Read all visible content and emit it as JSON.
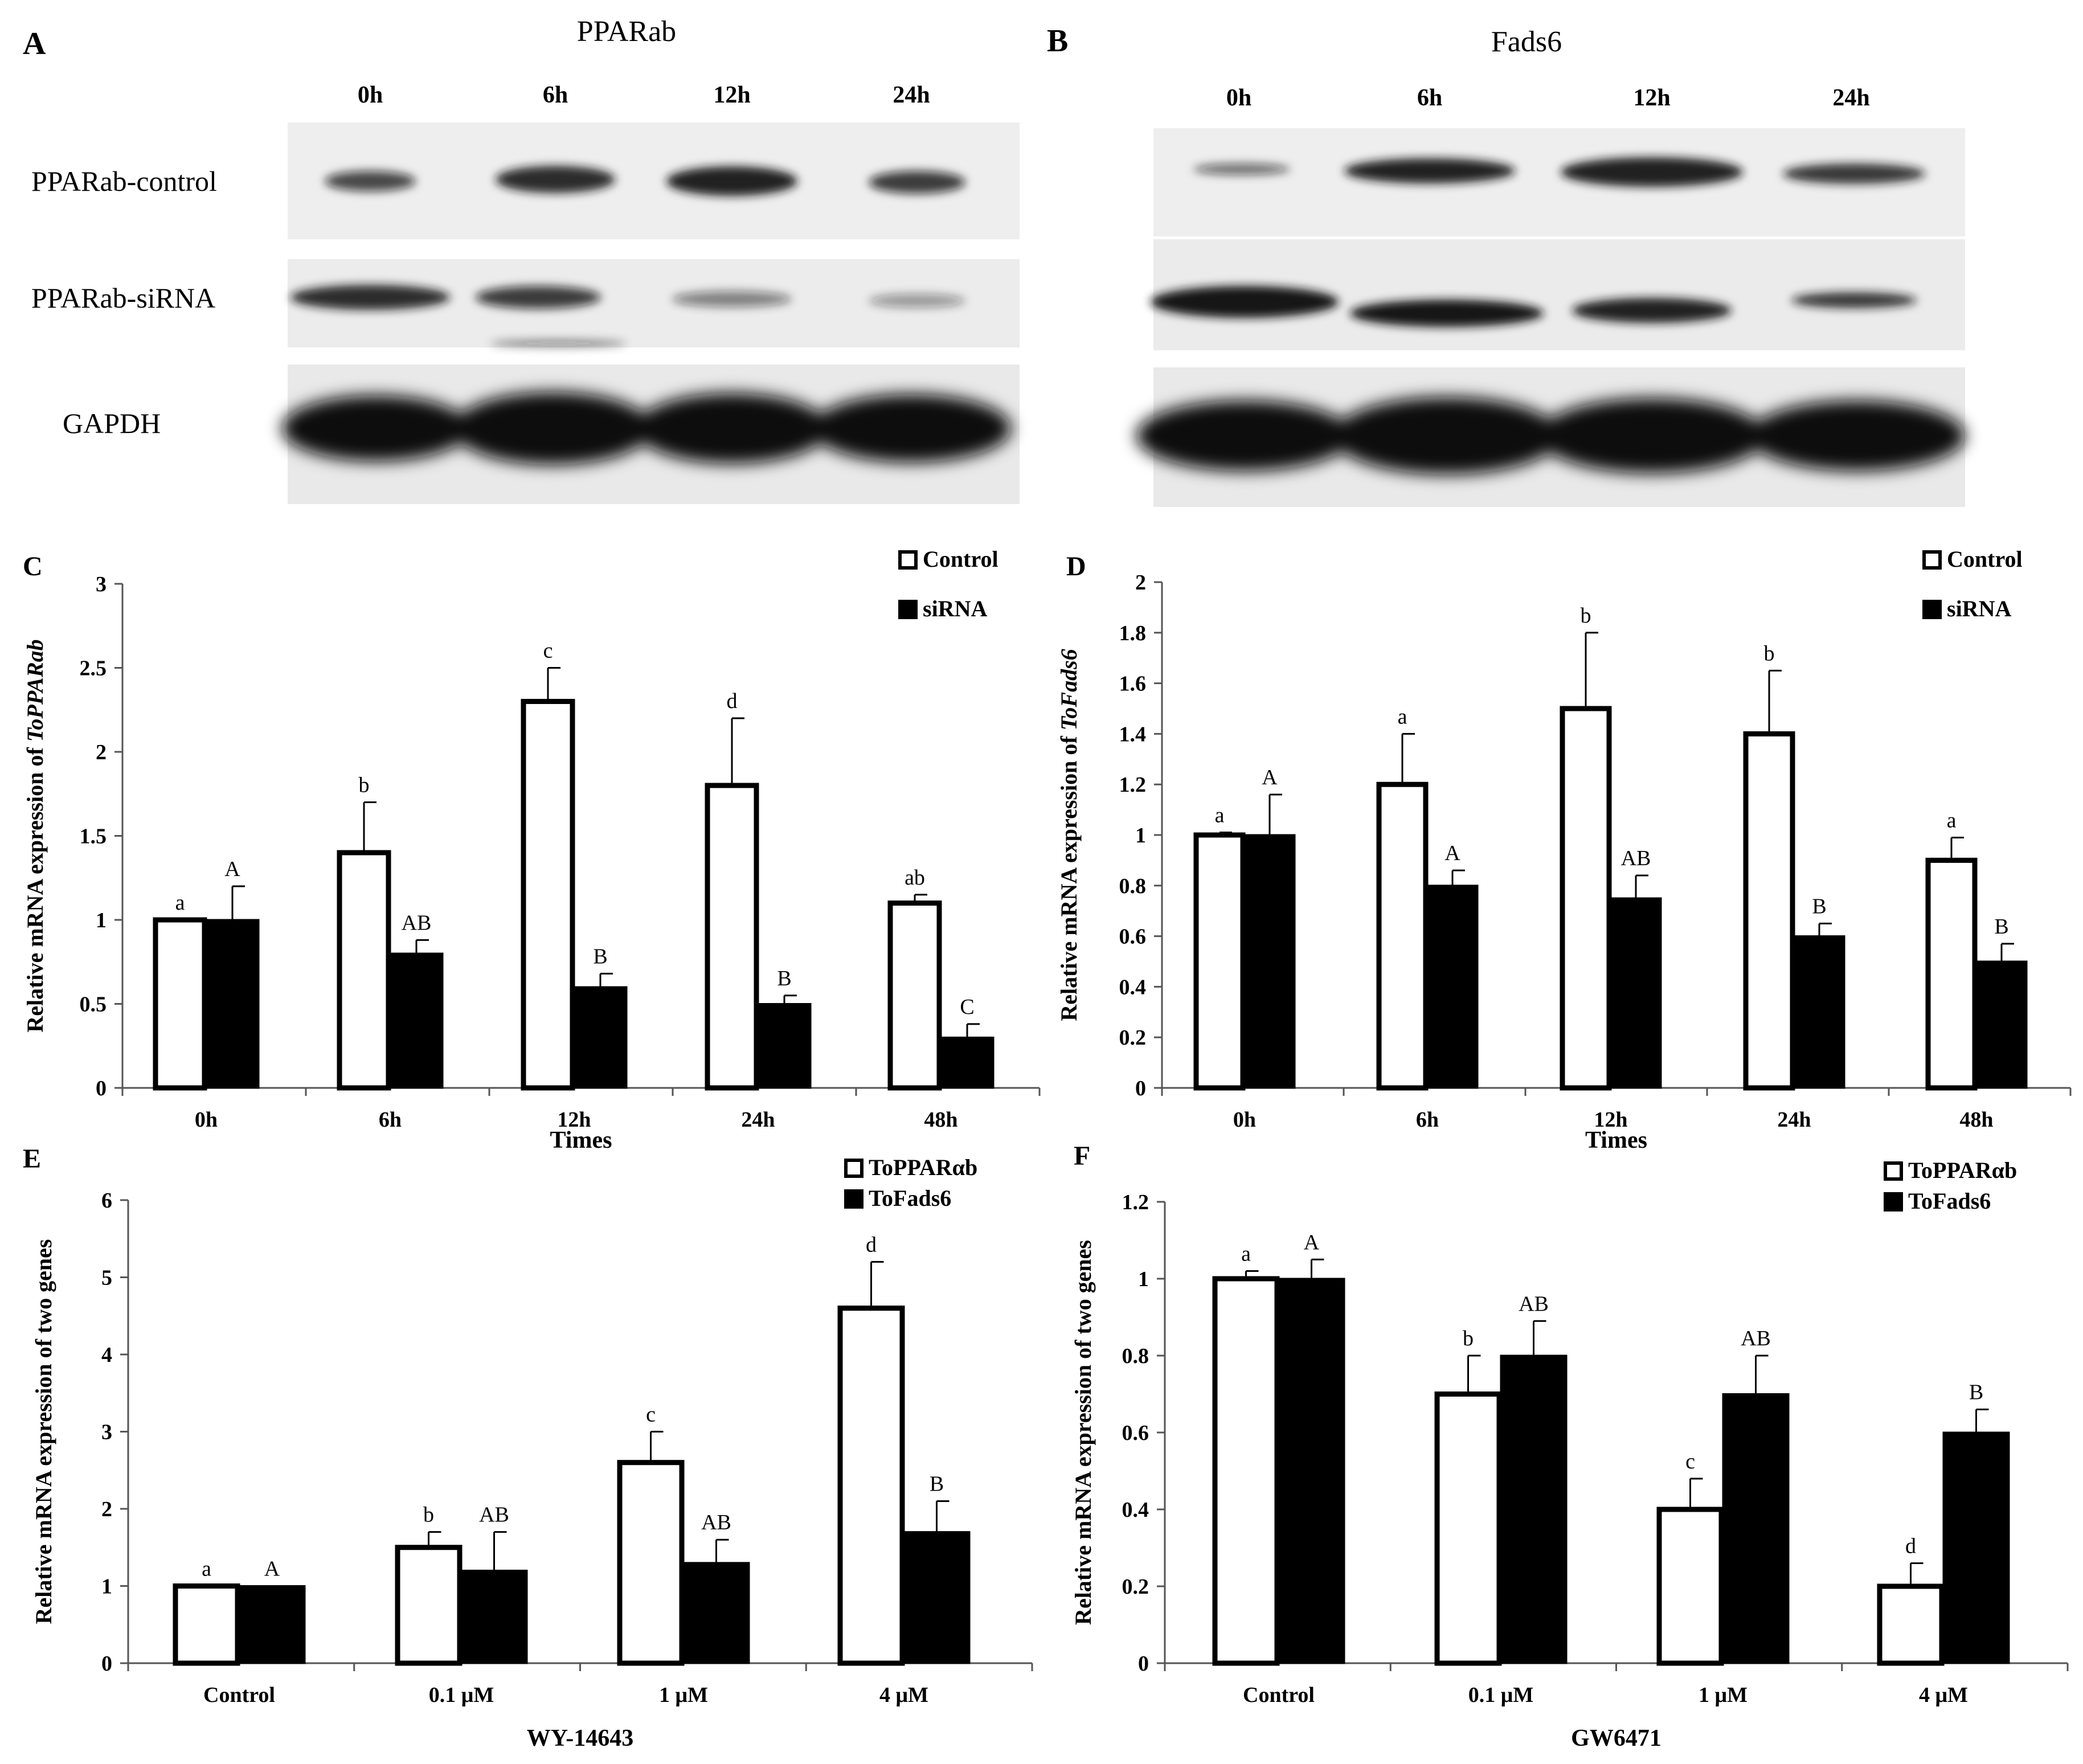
{
  "figure": {
    "panels": [
      {
        "id": "A",
        "title": "PPARab",
        "lanes": [
          "0h",
          "6h",
          "12h",
          "24h"
        ],
        "rows": [
          "PPARab-control",
          "PPARab-siRNA",
          "GAPDH"
        ]
      },
      {
        "id": "B",
        "title": "Fads6",
        "lanes": [
          "0h",
          "6h",
          "12h",
          "24h"
        ],
        "rows": [
          "",
          "",
          ""
        ]
      }
    ]
  },
  "chart_data": [
    {
      "panel": "C",
      "type": "bar",
      "xlabel": "Times",
      "ylabel_prefix": "Relative mRNA expression of ",
      "ylabel_italic": "ToPPARab",
      "ylim": [
        0,
        3
      ],
      "yticks": [
        "0",
        "0.5",
        "1",
        "1.5",
        "2",
        "2.5",
        "3"
      ],
      "categories": [
        "0h",
        "6h",
        "12h",
        "24h",
        "48h"
      ],
      "legend": "top-right",
      "series": [
        {
          "name": "Control",
          "fill": "#ffffff",
          "values": [
            1.0,
            1.4,
            2.3,
            1.8,
            1.1
          ],
          "errors": [
            0.0,
            0.3,
            0.2,
            0.4,
            0.05
          ],
          "letters": [
            "a",
            "b",
            "c",
            "d",
            "ab"
          ]
        },
        {
          "name": "siRNA",
          "fill": "#000000",
          "values": [
            1.0,
            0.8,
            0.6,
            0.5,
            0.3
          ],
          "errors": [
            0.2,
            0.08,
            0.08,
            0.05,
            0.08
          ],
          "letters": [
            "A",
            "AB",
            "B",
            "B",
            "C"
          ]
        }
      ]
    },
    {
      "panel": "D",
      "type": "bar",
      "xlabel": "Times",
      "ylabel_prefix": "Relative mRNA expression of ",
      "ylabel_italic": "ToFads6",
      "ylim": [
        0,
        2
      ],
      "yticks": [
        "0",
        "0.2",
        "0.4",
        "0.6",
        "0.8",
        "1",
        "1.2",
        "1.4",
        "1.6",
        "1.8",
        "2"
      ],
      "categories": [
        "0h",
        "6h",
        "12h",
        "24h",
        "48h"
      ],
      "legend": "top-right",
      "series": [
        {
          "name": "Control",
          "fill": "#ffffff",
          "values": [
            1.0,
            1.2,
            1.5,
            1.4,
            0.9
          ],
          "errors": [
            0.01,
            0.2,
            0.3,
            0.25,
            0.09
          ],
          "letters": [
            "a",
            "a",
            "b",
            "b",
            "a"
          ]
        },
        {
          "name": "siRNA",
          "fill": "#000000",
          "values": [
            1.0,
            0.8,
            0.75,
            0.6,
            0.5
          ],
          "errors": [
            0.16,
            0.06,
            0.09,
            0.05,
            0.07
          ],
          "letters": [
            "A",
            "A",
            "AB",
            "B",
            "B"
          ]
        }
      ]
    },
    {
      "panel": "E",
      "type": "bar",
      "xlabel": "WY-14643",
      "ylabel_prefix": "Relative mRNA expression of two genes",
      "ylabel_italic": "",
      "ylim": [
        0,
        6
      ],
      "yticks": [
        "0",
        "1",
        "2",
        "3",
        "4",
        "5",
        "6"
      ],
      "categories": [
        "Control",
        "0.1 μM",
        "1 μM",
        "4 μM"
      ],
      "legend": "top-right",
      "series": [
        {
          "name": "ToPPARαb",
          "fill": "#ffffff",
          "values": [
            1.0,
            1.5,
            2.6,
            4.6
          ],
          "errors": [
            0.0,
            0.2,
            0.4,
            0.6
          ],
          "letters": [
            "a",
            "b",
            "c",
            "d"
          ]
        },
        {
          "name": "ToFads6",
          "fill": "#000000",
          "values": [
            1.0,
            1.2,
            1.3,
            1.7
          ],
          "errors": [
            0.0,
            0.5,
            0.3,
            0.4
          ],
          "letters": [
            "A",
            "AB",
            "AB",
            "B"
          ]
        }
      ]
    },
    {
      "panel": "F",
      "type": "bar",
      "xlabel": "GW6471",
      "ylabel_prefix": "Relative mRNA expression of two genes",
      "ylabel_italic": "",
      "ylim": [
        0,
        1.2
      ],
      "yticks": [
        "0",
        "0.2",
        "0.4",
        "0.6",
        "0.8",
        "1",
        "1.2"
      ],
      "categories": [
        "Control",
        "0.1 μM",
        "1 μM",
        "4 μM"
      ],
      "legend": "top-right",
      "series": [
        {
          "name": "ToPPARαb",
          "fill": "#ffffff",
          "values": [
            1.0,
            0.7,
            0.4,
            0.2
          ],
          "errors": [
            0.02,
            0.1,
            0.08,
            0.06
          ],
          "letters": [
            "a",
            "b",
            "c",
            "d"
          ]
        },
        {
          "name": "ToFads6",
          "fill": "#000000",
          "values": [
            1.0,
            0.8,
            0.7,
            0.6
          ],
          "errors": [
            0.05,
            0.09,
            0.1,
            0.06
          ],
          "letters": [
            "A",
            "AB",
            "AB",
            "B"
          ]
        }
      ]
    }
  ]
}
